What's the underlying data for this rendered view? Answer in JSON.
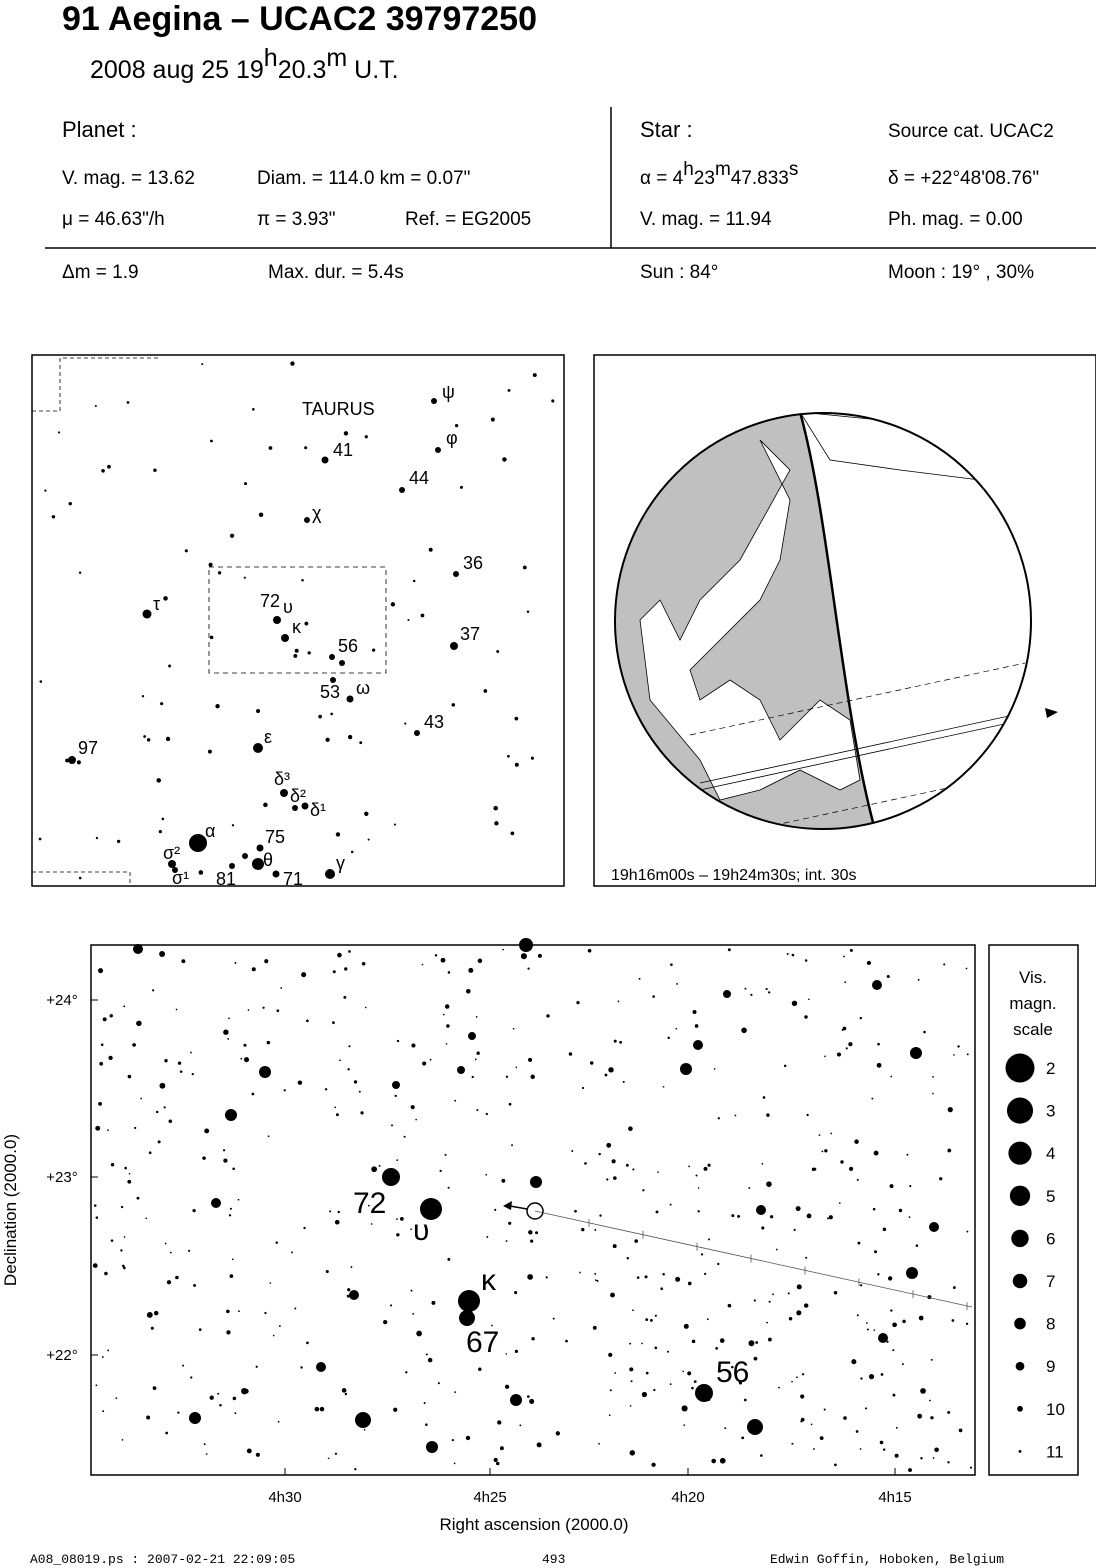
{
  "header": {
    "title": "91 Aegina  –  UCAC2 39797250",
    "date": [
      "2008 aug 25  19",
      "h",
      "20.3",
      "m",
      " U.T."
    ]
  },
  "planet": {
    "heading": "Planet :",
    "vmag": "V. mag. = 13.62",
    "diam": "Diam. = 114.0 km = 0.07\"",
    "mu": "μ =  46.63\"/h",
    "pi": "π =  3.93\"",
    "ref": "Ref. = EG2005"
  },
  "star": {
    "heading": "Star :",
    "source": "Source cat.  UCAC2",
    "alpha": [
      "α =  4",
      "h",
      "23",
      "m",
      "47.833",
      "s"
    ],
    "delta": "δ = +22°48'08.76\"",
    "vmag": "V. mag. = 11.94",
    "phmag": "Ph. mag. =  0.00"
  },
  "event": {
    "dm": "Δm = 1.9",
    "maxdur": "Max. dur. = 5.4s",
    "sun": "Sun :  84°",
    "moon": "Moon :  19° , 30%"
  },
  "finder": {
    "labels": [
      "TAURUS",
      "ψ",
      "41",
      "φ",
      "44",
      "χ",
      "36",
      "τ",
      "72",
      "υ",
      "κ",
      "56",
      "37",
      "53",
      "ω",
      "43",
      "97",
      "ε",
      "δ³",
      "δ²",
      "δ¹",
      "α",
      "75",
      "σ²",
      "σ¹",
      "81",
      "θ",
      "71",
      "γ"
    ]
  },
  "globe": {
    "caption": "19h16m00s – 19h24m30s; int. 30s"
  },
  "chart": {
    "labels": [
      "72",
      "υ",
      "κ",
      "67",
      "56"
    ],
    "yticks": [
      "+24°",
      "+23°",
      "+22°"
    ],
    "xticks": [
      "4h30",
      "4h25",
      "4h20",
      "4h15"
    ],
    "ylabel": "Declination (2000.0)",
    "xlabel": "Right ascension (2000.0)",
    "legend": {
      "title": [
        "Vis.",
        "magn.",
        "scale"
      ],
      "mags": [
        2,
        3,
        4,
        5,
        6,
        7,
        8,
        9,
        10,
        11
      ]
    }
  },
  "footer": {
    "file": "A08_08019.ps : 2007-02-21 22:09:05",
    "page": "493",
    "author": "Edwin Goffin, Hoboken, Belgium"
  }
}
